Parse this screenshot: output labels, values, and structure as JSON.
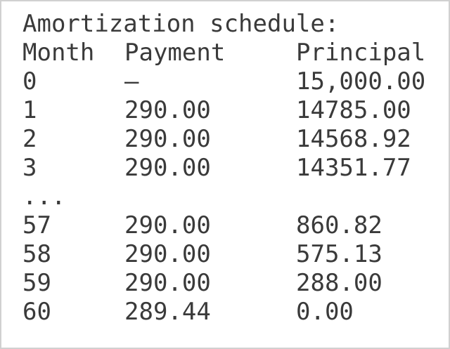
{
  "title": "Amortization schedule:",
  "table": {
    "header": [
      "Month",
      "Payment",
      "Principal"
    ],
    "rows": [
      [
        "0",
        "–",
        "15,000.00"
      ],
      [
        "1",
        "290.00",
        "14785.00"
      ],
      [
        "2",
        "290.00",
        "14568.92"
      ],
      [
        "3",
        "290.00",
        "14351.77"
      ],
      [
        "..."
      ],
      [
        "57",
        "290.00",
        "860.82"
      ],
      [
        "58",
        "290.00",
        "575.13"
      ],
      [
        "59",
        "290.00",
        "288.00"
      ],
      [
        "60",
        "289.44",
        "0.00"
      ]
    ]
  }
}
